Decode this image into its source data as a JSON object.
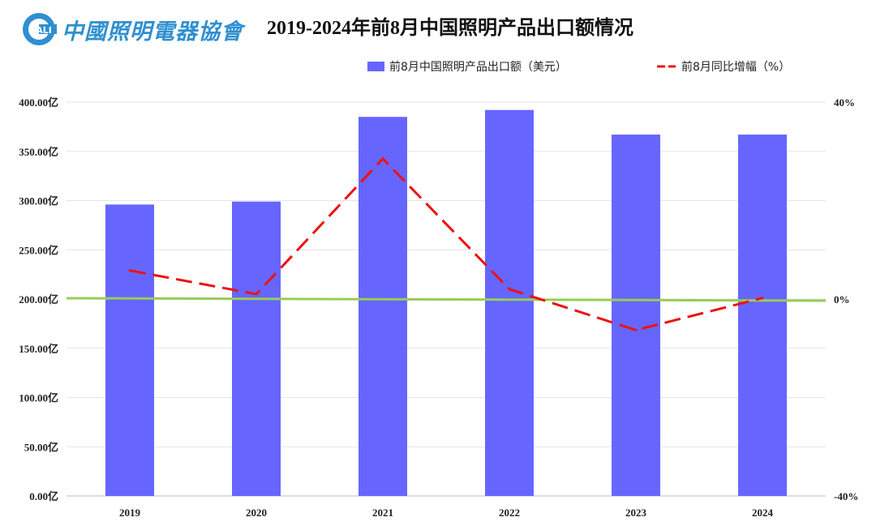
{
  "header": {
    "logo_mark": "ALI",
    "logo_text": "中國照明電器協會",
    "title": "2019-2024年前8月中国照明产品出口额情况"
  },
  "chart_data": {
    "type": "bar",
    "title": "2019-2024年前8月中国照明产品出口额情况",
    "categories": [
      "2019",
      "2020",
      "2021",
      "2022",
      "2023",
      "2024"
    ],
    "series": [
      {
        "name": "前8月中国照明产品出口额（美元）",
        "type": "bar",
        "axis": "left",
        "color": "#6666ff",
        "values": [
          296,
          299,
          385,
          392,
          367,
          367
        ]
      },
      {
        "name": "前8月同比增幅（%）",
        "type": "line",
        "style": "dashed",
        "axis": "right",
        "color": "#ee1111",
        "values": [
          5.8,
          1.0,
          28.5,
          2.0,
          -6.3,
          0.2
        ]
      }
    ],
    "reference_line": {
      "axis": "right",
      "value": 0,
      "color": "#99cc55"
    },
    "left_axis": {
      "min": 0,
      "max": 400,
      "step": 50,
      "tick_labels": [
        "0.00亿",
        "50.00亿",
        "100.00亿",
        "150.00亿",
        "200.00亿",
        "250.00亿",
        "300.00亿",
        "350.00亿",
        "400.00亿"
      ]
    },
    "right_axis": {
      "min": -40,
      "max": 40,
      "tick_values": [
        -40,
        0,
        40
      ],
      "tick_labels": [
        "-40%",
        "0%",
        "40%"
      ]
    },
    "legend_position": "top-right",
    "grid": true
  }
}
